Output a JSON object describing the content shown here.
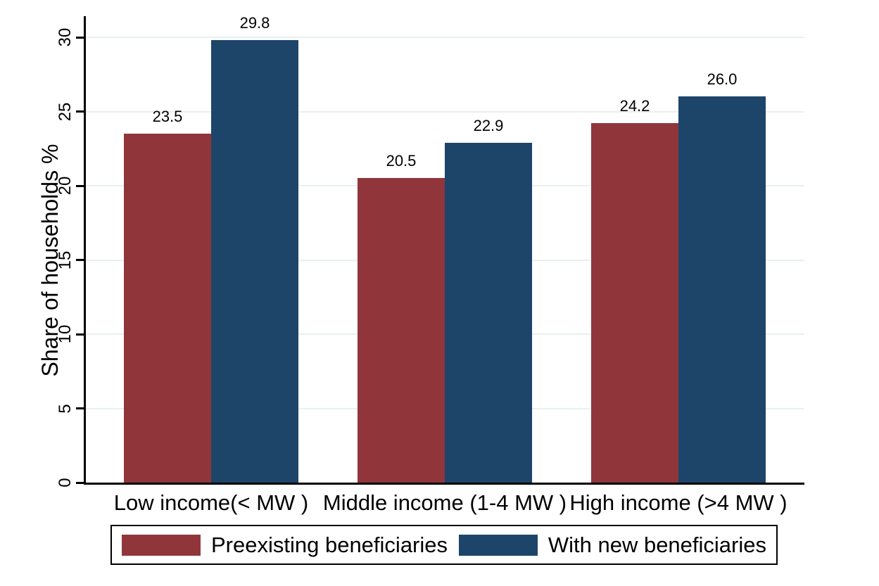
{
  "chart_data": {
    "type": "bar",
    "title": "",
    "xlabel": "",
    "ylabel": "Share of households %",
    "ylim": [
      0,
      30
    ],
    "yticks": [
      0,
      5,
      10,
      15,
      20,
      25,
      30
    ],
    "grid": true,
    "legend_position": "bottom",
    "categories": [
      "Low income(< MW )",
      "Middle income (1-4 MW )",
      "High income (>4 MW )"
    ],
    "series": [
      {
        "name": "Preexisting beneficiaries",
        "color": "#90363B",
        "values": [
          23.5,
          20.5,
          24.2
        ],
        "value_labels": [
          "23.5",
          "20.5",
          "24.2"
        ]
      },
      {
        "name": "With new beneficiaries",
        "color": "#1D4569",
        "values": [
          29.8,
          22.9,
          26.0
        ],
        "value_labels": [
          "29.8",
          "22.9",
          "26.0"
        ]
      }
    ],
    "colors": {
      "axis": "#000000",
      "gridline": "#e9f0f1",
      "background": "#ffffff",
      "text": "#000000"
    }
  }
}
